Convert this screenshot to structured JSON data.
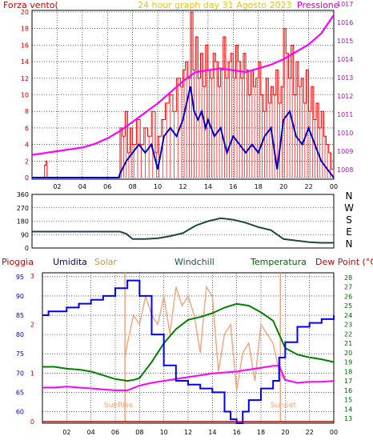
{
  "top": {
    "left_label": "Forza vento(",
    "center_label": "24 hour graph day  31 Agosto 2023",
    "right_label": "Pressione",
    "y_left_ticks": [
      "0",
      "2",
      "4",
      "6",
      "8",
      "10",
      "12",
      "14",
      "16",
      "18",
      "20"
    ],
    "y_right_ticks": [
      "1008",
      "1009",
      "1010",
      "1011",
      "1012",
      "1013",
      "1014",
      "1015",
      "1016",
      "1017"
    ],
    "x_ticks": [
      "02",
      "04",
      "06",
      "08",
      "10",
      "12",
      "14",
      "16",
      "18",
      "20",
      "22",
      "00"
    ]
  },
  "mid": {
    "y_ticks": [
      "0",
      "90",
      "180",
      "270",
      "360"
    ],
    "directions": [
      "N",
      "W",
      "S",
      "E",
      "N"
    ]
  },
  "bottom": {
    "labels": {
      "pioggia": "Pioggia",
      "umidita": "Umidita",
      "solar": "Solar",
      "windchill": "Windchill",
      "temperatura": "Temperatura",
      "dew": "Dew Point (°C)",
      "sunrise": "SunRise",
      "sunset": "SunSet"
    },
    "hum_ticks": [
      "60",
      "65",
      "70",
      "75",
      "80",
      "85",
      "90",
      "95"
    ],
    "rain_ticks": [
      "0",
      "1",
      "2",
      "3"
    ],
    "temp_ticks": [
      "13",
      "14",
      "15",
      "16",
      "17",
      "18",
      "19",
      "20",
      "21",
      "22",
      "23",
      "24",
      "25",
      "26",
      "27",
      "28"
    ],
    "x_ticks": [
      "02",
      "04",
      "06",
      "08",
      "10",
      "12",
      "14",
      "16",
      "18",
      "20",
      "22",
      "00"
    ]
  },
  "colors": {
    "wind": "#ff0000",
    "gust_fill": "#ff0000",
    "avg": "#0000cc",
    "pressure": "#ff00ff",
    "direction": "#1e4646",
    "humidity": "#0000ff",
    "temperature": "#008000",
    "dew": "#ff00ff",
    "solar": "#f5a27a",
    "grid": "#000000"
  },
  "chart_data": [
    {
      "type": "line",
      "title": "24 hour graph day  31 Agosto 2023",
      "x_unit": "hour",
      "series": [
        {
          "name": "Forza vento(",
          "axis": "left",
          "x": [
            0,
            0.9,
            1,
            1.1,
            1.2,
            1.9,
            2,
            6.5,
            6.9,
            7,
            7.2,
            7.4,
            7.6,
            7.8,
            8,
            8.3,
            8.6,
            8.9,
            9.2,
            9.5,
            9.8,
            10,
            10.3,
            10.6,
            10.9,
            11.2,
            11.5,
            11.8,
            12,
            12.2,
            12.4,
            12.6,
            12.8,
            13,
            13.2,
            13.4,
            13.6,
            13.8,
            14,
            14.2,
            14.4,
            14.6,
            14.8,
            15,
            15.2,
            15.4,
            15.6,
            15.8,
            16,
            16.2,
            16.4,
            16.6,
            16.8,
            17,
            17.2,
            17.4,
            17.6,
            17.8,
            18,
            18.2,
            18.4,
            18.6,
            18.8,
            19,
            19.2,
            19.4,
            19.6,
            19.8,
            20,
            20.2,
            20.4,
            20.6,
            20.8,
            21,
            21.2,
            21.4,
            21.6,
            21.8,
            22,
            22.2,
            22.4,
            22.6,
            22.8,
            23,
            23.2,
            23.4,
            23.6,
            23.8,
            24
          ],
          "y": [
            0,
            0,
            1.5,
            2,
            0,
            0,
            0,
            0,
            0,
            6,
            5,
            8,
            3,
            6,
            4,
            7,
            4,
            6,
            5,
            8,
            3,
            5,
            7,
            9,
            10,
            8,
            12,
            11,
            13,
            14,
            12,
            20,
            13,
            17,
            12,
            15,
            11,
            16,
            13,
            12,
            15,
            14,
            11,
            13,
            17,
            12,
            14,
            15,
            12,
            16,
            14,
            12,
            15,
            13,
            10,
            13,
            11,
            12,
            14,
            10,
            8,
            12,
            9,
            11,
            10,
            13,
            9,
            11,
            18,
            15,
            12,
            16,
            10,
            14,
            11,
            12,
            9,
            13,
            8,
            11,
            7,
            9,
            6,
            8,
            5,
            4,
            3,
            1,
            0
          ]
        },
        {
          "name": "Avg",
          "axis": "left",
          "x": [
            0,
            2,
            3,
            6.9,
            7,
            7.5,
            8,
            8.5,
            9,
            9.5,
            10,
            10.5,
            11,
            11.5,
            12,
            12.3,
            12.6,
            12.9,
            13.2,
            13.5,
            13.8,
            14,
            14.5,
            15,
            15.5,
            16,
            16.5,
            17,
            17.5,
            18,
            18.5,
            19,
            19.5,
            20,
            20.5,
            21,
            21.5,
            22,
            22.5,
            23,
            23.5,
            24
          ],
          "y": [
            0,
            0,
            0,
            0,
            0.5,
            2,
            3,
            4,
            3,
            4,
            1,
            5,
            6,
            5,
            7,
            9,
            11,
            8,
            7,
            8,
            6,
            7,
            5,
            6,
            3,
            5,
            4,
            3,
            4,
            3,
            5,
            6,
            1,
            7,
            8,
            5,
            4,
            6,
            4,
            2,
            1,
            0
          ]
        },
        {
          "name": "Pressione",
          "axis": "right",
          "x": [
            0,
            1,
            2,
            3,
            4,
            5,
            6,
            7,
            8,
            9,
            10,
            11,
            12,
            13,
            14,
            15,
            16,
            17,
            18,
            19,
            20,
            21,
            22,
            23,
            24
          ],
          "y": [
            1008.8,
            1008.9,
            1009.0,
            1009.1,
            1009.2,
            1009.4,
            1009.7,
            1010.1,
            1010.6,
            1011.1,
            1011.6,
            1012.2,
            1012.8,
            1013.3,
            1013.4,
            1013.5,
            1013.4,
            1013.3,
            1013.5,
            1013.7,
            1014.0,
            1014.4,
            1014.8,
            1015.4,
            1016.4
          ]
        }
      ],
      "xlim": [
        0,
        24
      ],
      "ylim_left": [
        0,
        20
      ],
      "ylim_right": [
        1008,
        1017
      ]
    },
    {
      "type": "line",
      "x_unit": "hour",
      "series": [
        {
          "name": "Direction",
          "x": [
            0,
            1,
            2,
            3,
            4,
            5,
            6,
            7,
            7.5,
            8,
            9,
            10,
            11,
            12,
            13,
            14,
            15,
            16,
            17,
            18,
            19,
            20,
            21,
            22,
            23,
            24
          ],
          "y": [
            110,
            110,
            110,
            110,
            110,
            110,
            110,
            110,
            95,
            60,
            60,
            65,
            80,
            100,
            150,
            180,
            200,
            190,
            170,
            140,
            120,
            60,
            50,
            40,
            35,
            35
          ]
        }
      ],
      "xlim": [
        0,
        24
      ],
      "ylim": [
        0,
        360
      ]
    },
    {
      "type": "line",
      "x_unit": "hour",
      "series": [
        {
          "name": "Umidita",
          "axis": "humidity",
          "x": [
            0,
            0.5,
            1,
            2,
            3,
            4,
            5,
            6,
            7,
            7.5,
            8,
            9,
            10,
            11,
            12,
            13,
            14,
            15,
            15.5,
            16,
            16.5,
            17,
            18,
            19,
            19.5,
            20,
            21,
            22,
            23,
            24
          ],
          "y": [
            85,
            86,
            86,
            87,
            88,
            89,
            90,
            92,
            94,
            94,
            90,
            80,
            72,
            68,
            67,
            66,
            65,
            60,
            58,
            57,
            60,
            63,
            66,
            68,
            74,
            78,
            82,
            83,
            84,
            85
          ]
        },
        {
          "name": "Temperatura",
          "axis": "temp",
          "x": [
            0,
            1,
            2,
            3,
            4,
            5,
            6,
            7,
            7.5,
            8,
            9,
            10,
            11,
            12,
            13,
            14,
            15,
            16,
            17,
            18,
            19,
            20,
            21,
            22,
            23,
            24
          ],
          "y": [
            18.5,
            18.5,
            18.3,
            18.2,
            18,
            17.6,
            17.2,
            17.0,
            17.1,
            17.3,
            19,
            21,
            22.5,
            23.5,
            23.8,
            24.2,
            24.8,
            25.2,
            25,
            24.3,
            23.4,
            20.5,
            19.8,
            19.5,
            19.3,
            19.0
          ]
        },
        {
          "name": "Dew Point (°C)",
          "axis": "temp",
          "x": [
            0,
            1,
            2,
            3,
            4,
            5,
            6,
            7,
            8,
            9,
            10,
            11,
            12,
            13,
            14,
            15,
            16,
            17,
            18,
            19,
            19.5,
            20,
            21,
            22,
            23,
            24
          ],
          "y": [
            16.3,
            16.3,
            16.4,
            16.3,
            16.2,
            16.1,
            16.0,
            16.0,
            16.5,
            16.8,
            17.0,
            17.2,
            17.4,
            17.6,
            17.8,
            17.9,
            18.0,
            18.2,
            18.4,
            18.6,
            18.6,
            17.1,
            16.8,
            16.9,
            16.9,
            17.0
          ]
        },
        {
          "name": "Solar",
          "axis": "temp",
          "x": [
            6.8,
            7,
            7.5,
            8,
            8.5,
            9,
            9.5,
            10,
            10.5,
            11,
            11.5,
            12,
            12.5,
            13,
            13.5,
            14,
            14.5,
            15,
            15.5,
            16,
            16.5,
            17,
            17.5,
            18,
            18.5,
            19,
            19.5,
            20
          ],
          "y": [
            19.5,
            21,
            24,
            23,
            26,
            24,
            23,
            26,
            22,
            27,
            25,
            26,
            24,
            20,
            27,
            26,
            18,
            22,
            23,
            16,
            20,
            21,
            17,
            23,
            22,
            21,
            18,
            17
          ]
        }
      ],
      "xlim": [
        0,
        24
      ],
      "ylim_humidity": [
        57,
        96
      ],
      "ylim_temp": [
        12.5,
        28.5
      ],
      "ylim_rain": [
        0,
        3
      ]
    }
  ]
}
